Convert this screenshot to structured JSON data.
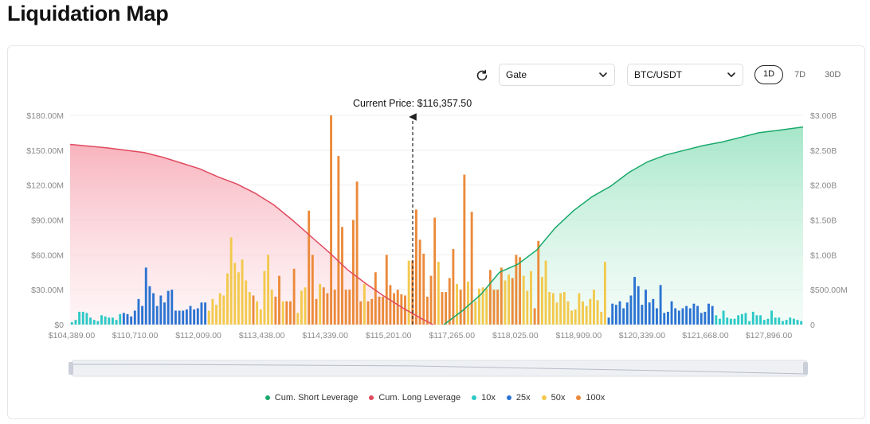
{
  "page_title": "Liquidation Map",
  "controls": {
    "exchange": "Gate",
    "pair": "BTC/USDT",
    "ranges": [
      "1D",
      "7D",
      "30D"
    ],
    "active_range": "1D"
  },
  "icons": {
    "refresh": "refresh-icon",
    "chevron": "chevron-down-icon"
  },
  "colors": {
    "short": "#1aa86b",
    "long": "#e04a5f",
    "lev10": "#2cc9c6",
    "lev25": "#2b73d2",
    "lev50": "#f2c94c",
    "lev100": "#eb8a3a"
  },
  "chart_data": {
    "type": "bar",
    "current_price_label": "Current Price: $116,357.50",
    "current_price": 116357.5,
    "y_left": {
      "ticks": [
        "$0",
        "$30.00M",
        "$60.00M",
        "$90.00M",
        "$120.00M",
        "$150.00M",
        "$180.00M"
      ],
      "max": 180
    },
    "y_right": {
      "ticks": [
        "0",
        "$500.00M",
        "$1.00B",
        "$1.50B",
        "$2.00B",
        "$2.50B",
        "$3.00B"
      ],
      "max": 3000
    },
    "x_ticks": [
      "$104,389.00",
      "$110,710.00",
      "$112,009.00",
      "$113,438.00",
      "$114,339.00",
      "$115,201.00",
      "$117,265.00",
      "$118,025.00",
      "$118,909.00",
      "$120,339.00",
      "$121,668.00",
      "$127,896.00"
    ],
    "legend": [
      {
        "name": "Cum. Short Leverage",
        "color": "#1aa86b"
      },
      {
        "name": "Cum. Long Leverage",
        "color": "#e04a5f"
      },
      {
        "name": "10x",
        "color": "#2cc9c6"
      },
      {
        "name": "25x",
        "color": "#2b73d2"
      },
      {
        "name": "50x",
        "color": "#f2c94c"
      },
      {
        "name": "100x",
        "color": "#eb8a3a"
      }
    ],
    "bars": [
      [
        0,
        2,
        "10x"
      ],
      [
        1,
        4,
        "10x"
      ],
      [
        2,
        11,
        "10x"
      ],
      [
        3,
        11,
        "10x"
      ],
      [
        4,
        10,
        "10x"
      ],
      [
        5,
        6,
        "10x"
      ],
      [
        6,
        4,
        "10x"
      ],
      [
        7,
        3,
        "10x"
      ],
      [
        8,
        8,
        "10x"
      ],
      [
        9,
        7,
        "10x"
      ],
      [
        10,
        6,
        "10x"
      ],
      [
        11,
        6,
        "10x"
      ],
      [
        12,
        4,
        "10x"
      ],
      [
        13,
        9,
        "10x"
      ],
      [
        14,
        10,
        "25x"
      ],
      [
        15,
        9,
        "25x"
      ],
      [
        16,
        7,
        "25x"
      ],
      [
        17,
        12,
        "25x"
      ],
      [
        18,
        22,
        "25x"
      ],
      [
        19,
        16,
        "25x"
      ],
      [
        20,
        49,
        "25x"
      ],
      [
        21,
        33,
        "25x"
      ],
      [
        22,
        27,
        "25x"
      ],
      [
        23,
        16,
        "25x"
      ],
      [
        24,
        25,
        "25x"
      ],
      [
        25,
        19,
        "25x"
      ],
      [
        26,
        29,
        "25x"
      ],
      [
        27,
        30,
        "25x"
      ],
      [
        28,
        12,
        "25x"
      ],
      [
        29,
        12,
        "25x"
      ],
      [
        30,
        12,
        "25x"
      ],
      [
        31,
        13,
        "25x"
      ],
      [
        32,
        16,
        "25x"
      ],
      [
        33,
        13,
        "25x"
      ],
      [
        34,
        14,
        "25x"
      ],
      [
        35,
        19,
        "25x"
      ],
      [
        36,
        19,
        "25x"
      ],
      [
        37,
        12,
        "50x"
      ],
      [
        38,
        22,
        "50x"
      ],
      [
        39,
        17,
        "50x"
      ],
      [
        40,
        27,
        "50x"
      ],
      [
        41,
        25,
        "50x"
      ],
      [
        42,
        44,
        "50x"
      ],
      [
        43,
        75,
        "50x"
      ],
      [
        44,
        53,
        "50x"
      ],
      [
        45,
        45,
        "50x"
      ],
      [
        46,
        56,
        "50x"
      ],
      [
        47,
        38,
        "50x"
      ],
      [
        48,
        28,
        "50x"
      ],
      [
        49,
        25,
        "100x"
      ],
      [
        50,
        20,
        "50x"
      ],
      [
        51,
        13,
        "50x"
      ],
      [
        52,
        46,
        "50x"
      ],
      [
        53,
        60,
        "50x"
      ],
      [
        54,
        30,
        "50x"
      ],
      [
        55,
        24,
        "100x"
      ],
      [
        56,
        42,
        "100x"
      ],
      [
        57,
        20,
        "50x"
      ],
      [
        58,
        20,
        "100x"
      ],
      [
        59,
        20,
        "100x"
      ],
      [
        60,
        48,
        "100x"
      ],
      [
        61,
        10,
        "50x"
      ],
      [
        62,
        29,
        "50x"
      ],
      [
        63,
        32,
        "50x"
      ],
      [
        64,
        98,
        "100x"
      ],
      [
        65,
        60,
        "100x"
      ],
      [
        66,
        22,
        "100x"
      ],
      [
        67,
        35,
        "50x"
      ],
      [
        68,
        32,
        "100x"
      ],
      [
        69,
        27,
        "100x"
      ],
      [
        70,
        180,
        "100x"
      ],
      [
        71,
        30,
        "100x"
      ],
      [
        72,
        145,
        "100x"
      ],
      [
        73,
        84,
        "100x"
      ],
      [
        74,
        30,
        "100x"
      ],
      [
        75,
        30,
        "100x"
      ],
      [
        76,
        90,
        "100x"
      ],
      [
        77,
        123,
        "100x"
      ],
      [
        78,
        20,
        "100x"
      ],
      [
        79,
        35,
        "50x"
      ],
      [
        80,
        20,
        "100x"
      ],
      [
        81,
        22,
        "100x"
      ],
      [
        82,
        45,
        "100x"
      ],
      [
        83,
        24,
        "100x"
      ],
      [
        84,
        24,
        "100x"
      ],
      [
        85,
        60,
        "100x"
      ],
      [
        86,
        34,
        "100x"
      ],
      [
        87,
        27,
        "100x"
      ],
      [
        88,
        30,
        "100x"
      ],
      [
        89,
        26,
        "100x"
      ],
      [
        90,
        25,
        "100x"
      ],
      [
        91,
        55,
        "50x"
      ],
      [
        92,
        55,
        "100x"
      ],
      [
        93,
        99,
        "100x"
      ],
      [
        94,
        73,
        "100x"
      ],
      [
        95,
        61,
        "100x"
      ],
      [
        96,
        24,
        "100x"
      ],
      [
        97,
        42,
        "100x"
      ],
      [
        98,
        92,
        "100x"
      ],
      [
        99,
        54,
        "50x"
      ],
      [
        100,
        28,
        "100x"
      ],
      [
        101,
        28,
        "100x"
      ],
      [
        102,
        40,
        "100x"
      ],
      [
        103,
        65,
        "100x"
      ],
      [
        104,
        35,
        "50x"
      ],
      [
        105,
        30,
        "100x"
      ],
      [
        106,
        129,
        "100x"
      ],
      [
        107,
        37,
        "50x"
      ],
      [
        108,
        97,
        "100x"
      ],
      [
        109,
        20,
        "50x"
      ],
      [
        110,
        31,
        "50x"
      ],
      [
        111,
        32,
        "50x"
      ],
      [
        112,
        31,
        "50x"
      ],
      [
        113,
        47,
        "100x"
      ],
      [
        114,
        30,
        "100x"
      ],
      [
        115,
        30,
        "100x"
      ],
      [
        116,
        49,
        "100x"
      ],
      [
        117,
        38,
        "50x"
      ],
      [
        118,
        43,
        "50x"
      ],
      [
        119,
        40,
        "100x"
      ],
      [
        120,
        60,
        "100x"
      ],
      [
        121,
        58,
        "100x"
      ],
      [
        122,
        42,
        "50x"
      ],
      [
        123,
        29,
        "50x"
      ],
      [
        124,
        46,
        "50x"
      ],
      [
        125,
        14,
        "100x"
      ],
      [
        126,
        72,
        "100x"
      ],
      [
        127,
        41,
        "50x"
      ],
      [
        128,
        55,
        "50x"
      ],
      [
        129,
        28,
        "50x"
      ],
      [
        130,
        27,
        "50x"
      ],
      [
        131,
        19,
        "50x"
      ],
      [
        132,
        27,
        "50x"
      ],
      [
        133,
        28,
        "50x"
      ],
      [
        134,
        20,
        "50x"
      ],
      [
        135,
        12,
        "50x"
      ],
      [
        136,
        13,
        "50x"
      ],
      [
        137,
        27,
        "50x"
      ],
      [
        138,
        20,
        "50x"
      ],
      [
        139,
        16,
        "50x"
      ],
      [
        140,
        22,
        "50x"
      ],
      [
        141,
        30,
        "50x"
      ],
      [
        142,
        21,
        "50x"
      ],
      [
        143,
        11,
        "50x"
      ],
      [
        144,
        54,
        "50x"
      ],
      [
        145,
        6,
        "25x"
      ],
      [
        146,
        18,
        "25x"
      ],
      [
        147,
        17,
        "25x"
      ],
      [
        148,
        20,
        "25x"
      ],
      [
        149,
        14,
        "25x"
      ],
      [
        150,
        19,
        "25x"
      ],
      [
        151,
        25,
        "25x"
      ],
      [
        152,
        41,
        "25x"
      ],
      [
        153,
        33,
        "25x"
      ],
      [
        154,
        17,
        "25x"
      ],
      [
        155,
        30,
        "25x"
      ],
      [
        156,
        19,
        "25x"
      ],
      [
        157,
        22,
        "25x"
      ],
      [
        158,
        14,
        "25x"
      ],
      [
        159,
        34,
        "25x"
      ],
      [
        160,
        10,
        "25x"
      ],
      [
        161,
        11,
        "25x"
      ],
      [
        162,
        20,
        "25x"
      ],
      [
        163,
        14,
        "25x"
      ],
      [
        164,
        12,
        "25x"
      ],
      [
        165,
        14,
        "25x"
      ],
      [
        166,
        16,
        "25x"
      ],
      [
        167,
        14,
        "25x"
      ],
      [
        168,
        18,
        "25x"
      ],
      [
        169,
        16,
        "25x"
      ],
      [
        170,
        10,
        "25x"
      ],
      [
        171,
        11,
        "25x"
      ],
      [
        172,
        18,
        "25x"
      ],
      [
        173,
        16,
        "25x"
      ],
      [
        174,
        8,
        "10x"
      ],
      [
        175,
        5,
        "10x"
      ],
      [
        176,
        12,
        "10x"
      ],
      [
        177,
        6,
        "10x"
      ],
      [
        178,
        5,
        "10x"
      ],
      [
        179,
        5,
        "10x"
      ],
      [
        180,
        8,
        "10x"
      ],
      [
        181,
        9,
        "10x"
      ],
      [
        182,
        10,
        "10x"
      ],
      [
        183,
        3,
        "10x"
      ],
      [
        184,
        11,
        "10x"
      ],
      [
        185,
        8,
        "10x"
      ],
      [
        186,
        8,
        "10x"
      ],
      [
        187,
        4,
        "10x"
      ],
      [
        188,
        5,
        "10x"
      ],
      [
        189,
        12,
        "10x"
      ],
      [
        190,
        6,
        "10x"
      ],
      [
        191,
        6,
        "10x"
      ],
      [
        192,
        3,
        "10x"
      ],
      [
        193,
        4,
        "10x"
      ],
      [
        194,
        6,
        "10x"
      ],
      [
        195,
        5,
        "10x"
      ],
      [
        196,
        4,
        "10x"
      ],
      [
        197,
        3,
        "10x"
      ]
    ],
    "bar_count": 198,
    "long_curve": [
      [
        0,
        155
      ],
      [
        10,
        152
      ],
      [
        20,
        148
      ],
      [
        25,
        144
      ],
      [
        30,
        139
      ],
      [
        35,
        134
      ],
      [
        40,
        127
      ],
      [
        45,
        121
      ],
      [
        50,
        113
      ],
      [
        55,
        103
      ],
      [
        60,
        90
      ],
      [
        65,
        76
      ],
      [
        70,
        62
      ],
      [
        75,
        47
      ],
      [
        80,
        35
      ],
      [
        85,
        24
      ],
      [
        90,
        14
      ],
      [
        95,
        5
      ],
      [
        98,
        0
      ]
    ],
    "short_curve": [
      [
        100,
        0
      ],
      [
        105,
        12
      ],
      [
        110,
        26
      ],
      [
        115,
        45
      ],
      [
        120,
        52
      ],
      [
        125,
        64
      ],
      [
        130,
        83
      ],
      [
        135,
        98
      ],
      [
        140,
        110
      ],
      [
        145,
        119
      ],
      [
        150,
        131
      ],
      [
        155,
        140
      ],
      [
        160,
        146
      ],
      [
        165,
        150
      ],
      [
        170,
        154
      ],
      [
        175,
        157
      ],
      [
        180,
        161
      ],
      [
        185,
        165
      ],
      [
        190,
        167
      ],
      [
        197,
        170
      ]
    ]
  },
  "legend_labels": [
    "Cum. Short Leverage",
    "Cum. Long Leverage",
    "10x",
    "25x",
    "50x",
    "100x"
  ]
}
